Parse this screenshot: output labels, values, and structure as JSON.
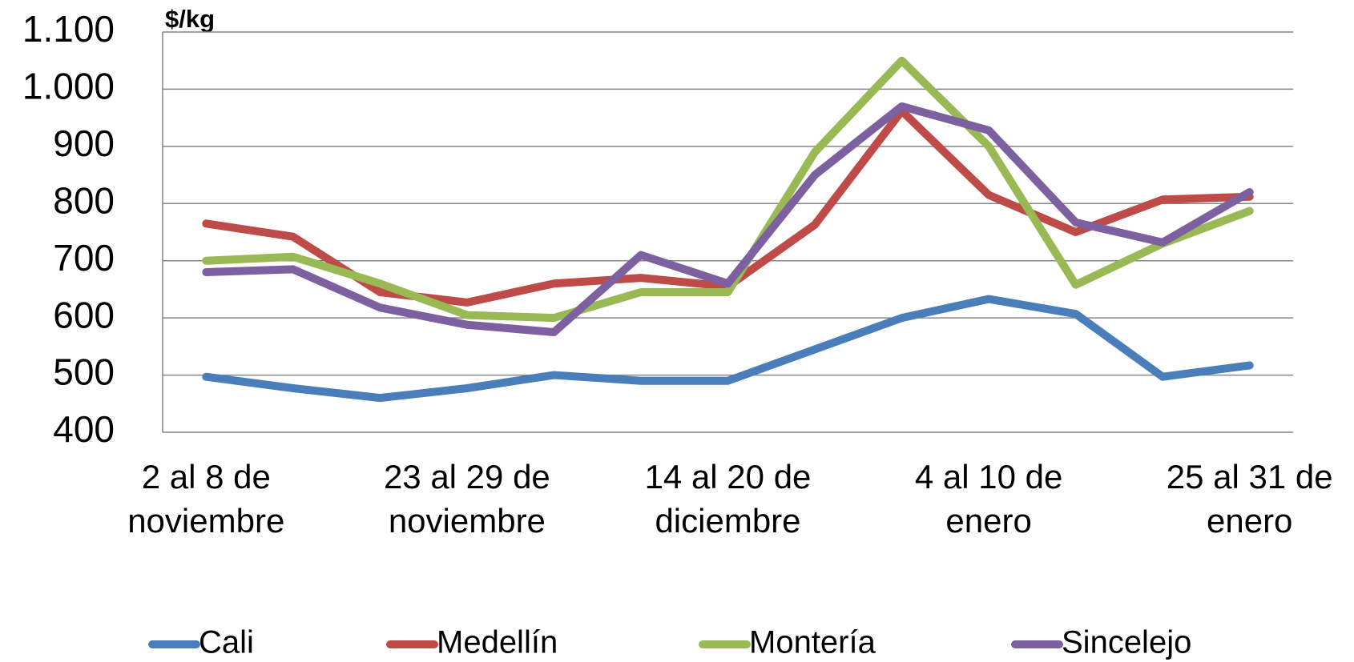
{
  "chart_data": {
    "type": "line",
    "y_label": "$/kg",
    "categories": [
      "2 al 8 de\nnoviembre",
      null,
      null,
      "23 al 29 de\nnoviembre",
      null,
      null,
      "14 al 20 de\ndiciembre",
      null,
      null,
      "4 al 10 de\nenero",
      null,
      null,
      "25 al 31 de\nenero"
    ],
    "series": [
      {
        "name": "Cali",
        "color": "#4a7ebb",
        "values": [
          497,
          477,
          460,
          477,
          500,
          490,
          490,
          545,
          600,
          633,
          607,
          497,
          517
        ]
      },
      {
        "name": "Medellín",
        "color": "#be4b48",
        "values": [
          765,
          742,
          645,
          627,
          660,
          670,
          655,
          763,
          962,
          815,
          750,
          807,
          812
        ]
      },
      {
        "name": "Montería",
        "color": "#98b954",
        "values": [
          700,
          707,
          660,
          605,
          600,
          645,
          645,
          890,
          1050,
          900,
          658,
          730,
          787
        ]
      },
      {
        "name": "Sincelejo",
        "color": "#7d60a0",
        "values": [
          680,
          685,
          618,
          588,
          575,
          710,
          660,
          850,
          970,
          928,
          767,
          732,
          820
        ]
      }
    ],
    "ylim": [
      400,
      1100
    ],
    "yticks": [
      400,
      500,
      600,
      700,
      800,
      900,
      {
        "value": 1000,
        "label": "1.000"
      },
      {
        "value": 1100,
        "label": "1.100"
      }
    ],
    "grid": true,
    "legend": "bottom"
  }
}
